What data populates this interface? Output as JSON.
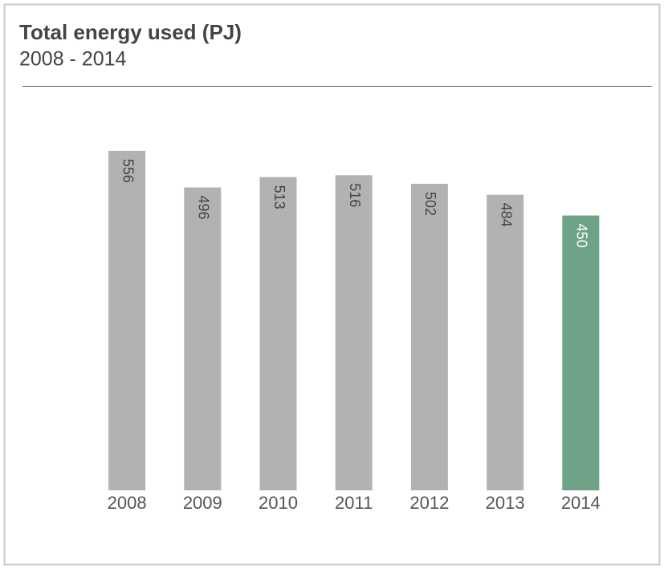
{
  "chart_data": {
    "type": "bar",
    "title": "Total energy used (PJ)",
    "subtitle": "2008 - 2014",
    "categories": [
      "2008",
      "2009",
      "2010",
      "2011",
      "2012",
      "2013",
      "2014"
    ],
    "values": [
      556,
      496,
      513,
      516,
      502,
      484,
      450
    ],
    "colors": [
      "#b2b2b2",
      "#b2b2b2",
      "#b2b2b2",
      "#b2b2b2",
      "#b2b2b2",
      "#b2b2b2",
      "#6fa387"
    ],
    "label_colors": [
      "#444444",
      "#444444",
      "#444444",
      "#444444",
      "#444444",
      "#444444",
      "#ffffff"
    ],
    "ylim": [
      0,
      600
    ]
  }
}
